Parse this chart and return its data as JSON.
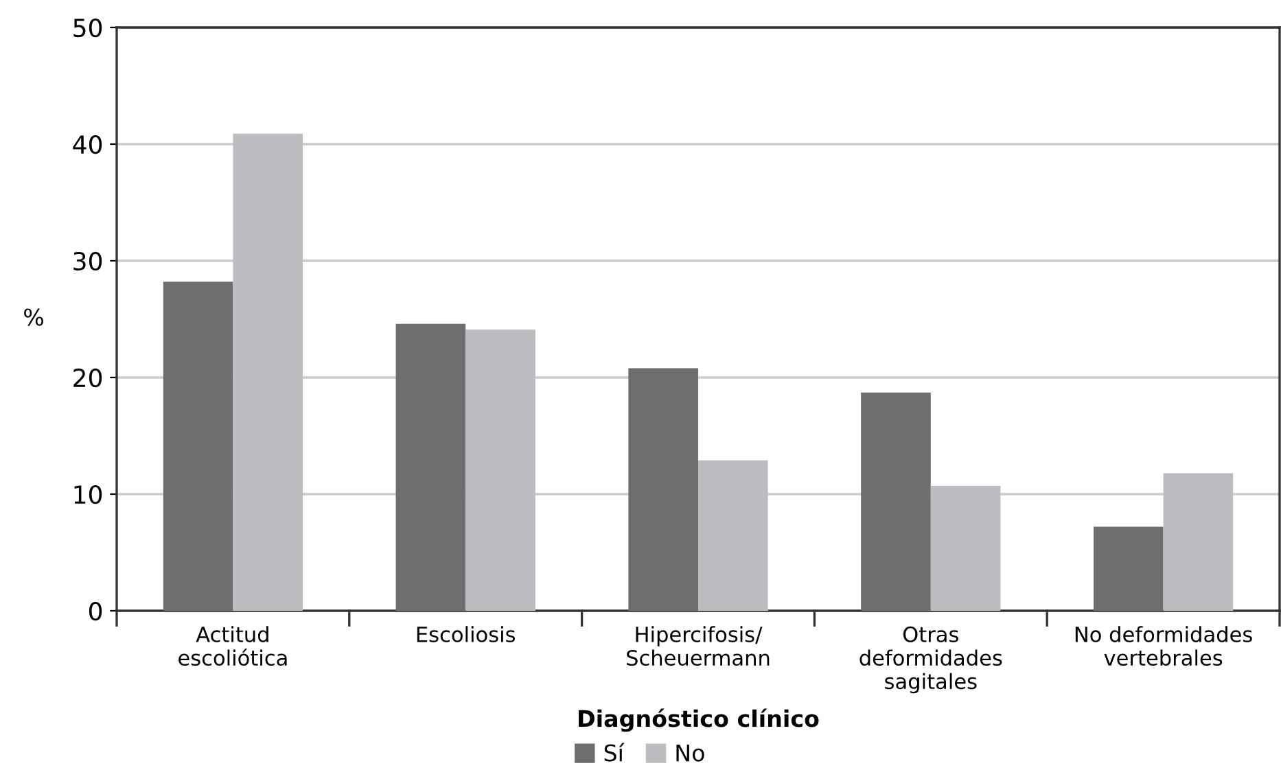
{
  "chart_data": {
    "type": "bar",
    "xlabel": "Diagnóstico clínico",
    "ylabel": "%",
    "categories": [
      "Actitud\nescoliótica",
      "Escoliosis",
      "Hipercifosis/\nScheuermann",
      "Otras\ndeformidades\nsagitales",
      "No deformidades\nvertebrales"
    ],
    "series": [
      {
        "name": "Sí",
        "color": "#6d6e70",
        "values": [
          28.2,
          24.6,
          20.8,
          18.7,
          7.2
        ]
      },
      {
        "name": "No",
        "color": "#bcbdc1",
        "values": [
          40.9,
          24.1,
          12.9,
          10.7,
          11.8
        ]
      }
    ],
    "ylim": [
      0,
      50
    ],
    "yticks": [
      0,
      10,
      20,
      30,
      40,
      50
    ],
    "grid": "y",
    "legend": "bottom"
  }
}
